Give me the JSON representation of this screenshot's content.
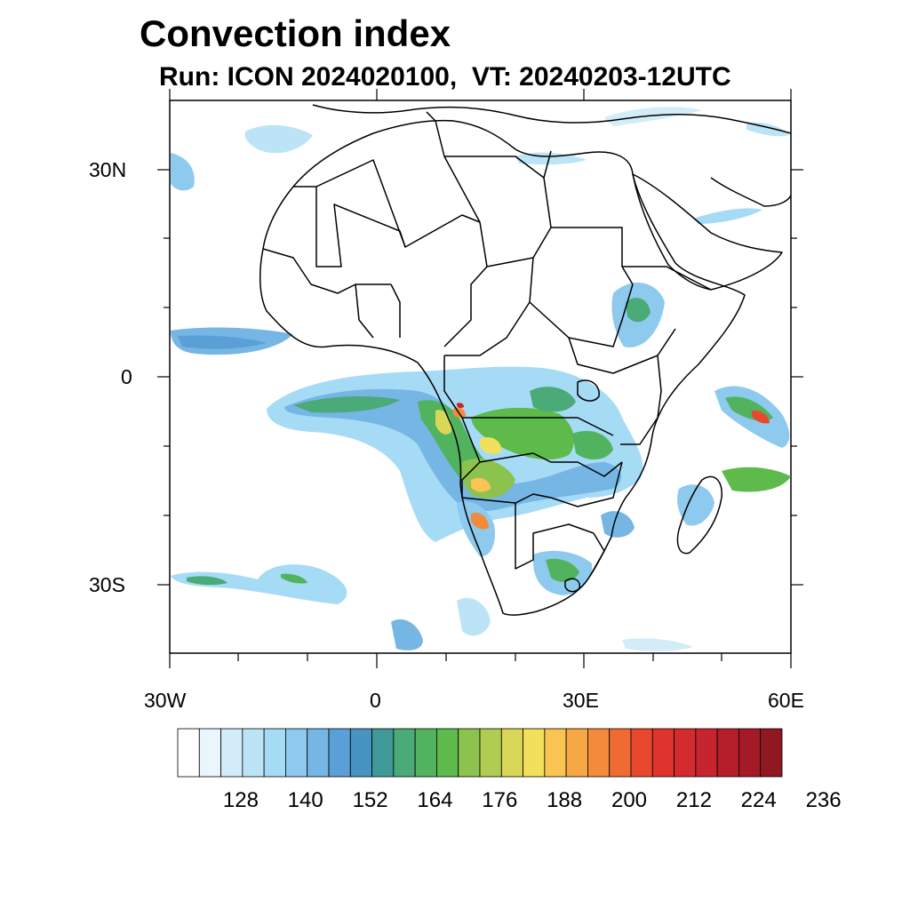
{
  "title": "Convection index",
  "subtitle": "Run: ICON 2024020100,  VT: 20240203-12UTC",
  "lat_labels": [
    "30N",
    "0",
    "30S"
  ],
  "lon_labels": [
    "30W",
    "0",
    "30E",
    "60E"
  ],
  "colorbar": {
    "tick_labels": [
      "128",
      "140",
      "152",
      "164",
      "176",
      "188",
      "200",
      "212",
      "224",
      "236"
    ],
    "colors": [
      "#ffffff",
      "#eaf6fc",
      "#d2ecf8",
      "#bde4f6",
      "#a6dbf5",
      "#8dcaee",
      "#76b6e5",
      "#5a9fd6",
      "#4793c2",
      "#3f9999",
      "#4aaa78",
      "#52b35f",
      "#5dba4b",
      "#8cc24e",
      "#b1cc52",
      "#d9d757",
      "#f2df5b",
      "#f9c451",
      "#f7a844",
      "#f48a3b",
      "#ef6b34",
      "#e8492e",
      "#df342d",
      "#d42b2e",
      "#c6242e",
      "#b61e2c",
      "#a41a27",
      "#8f1822"
    ]
  },
  "map": {
    "extent": {
      "lon": [
        -30,
        60
      ],
      "lat": [
        -40,
        40
      ]
    },
    "coastline_color": "#000000",
    "border_color": "#000000"
  }
}
